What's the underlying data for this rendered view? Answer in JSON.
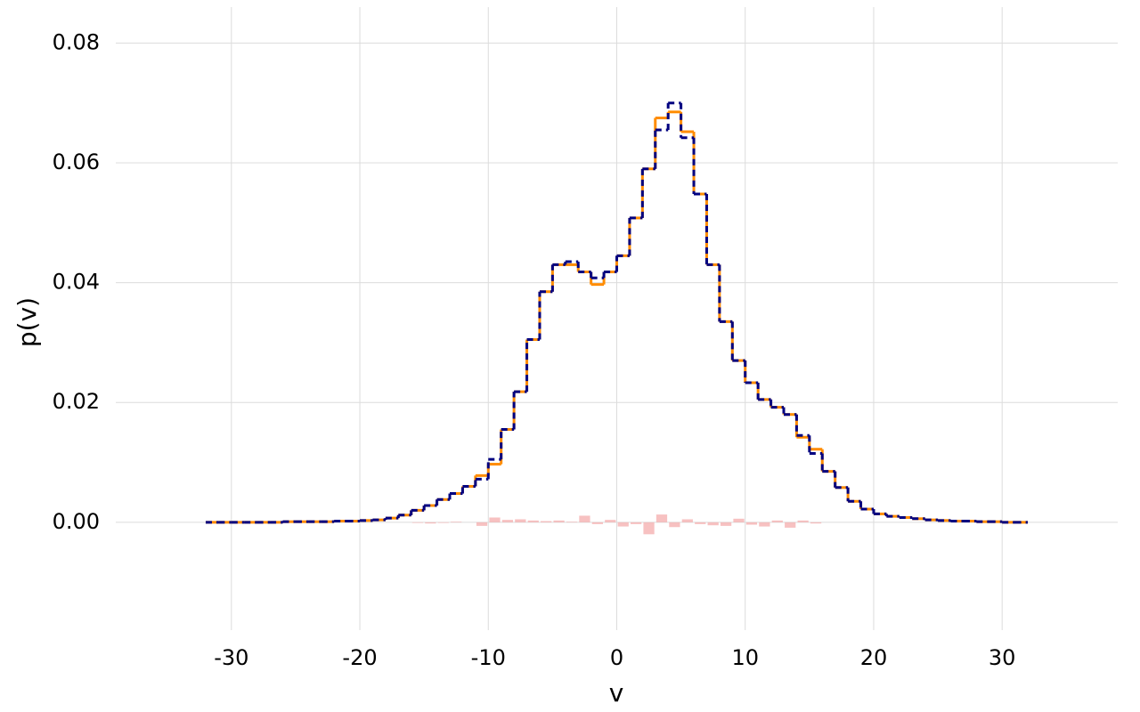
{
  "chart_data": {
    "type": "step-histogram",
    "x_label": "v",
    "y_label": "p(v)",
    "xlim": [
      -39,
      39
    ],
    "ylim": [
      -0.018,
      0.086
    ],
    "xticks": [
      -30,
      -20,
      -10,
      0,
      10,
      20,
      30
    ],
    "yticks": [
      {
        "value": 0,
        "label": "0.00"
      },
      0.02,
      0.04,
      0.06,
      0.08
    ],
    "grid": true,
    "bins": [
      -32,
      -31,
      -30,
      -29,
      -28,
      -27,
      -26,
      -25,
      -24,
      -23,
      -22,
      -21,
      -20,
      -19,
      -18,
      -17,
      -16,
      -15,
      -14,
      -13,
      -12,
      -11,
      -10,
      -9,
      -8,
      -7,
      -6,
      -5,
      -4,
      -3,
      -2,
      -1,
      0,
      1,
      2,
      3,
      4,
      5,
      6,
      7,
      8,
      9,
      10,
      11,
      12,
      13,
      14,
      15,
      16,
      17,
      18,
      19,
      20,
      21,
      22,
      23,
      24,
      25,
      26,
      27,
      28,
      29,
      30,
      31,
      32
    ],
    "series": [
      {
        "color": "#ff8c00",
        "style": "solid",
        "values": [
          0,
          0,
          0,
          0,
          0,
          0,
          0.0001,
          0.0001,
          0.0001,
          0.0001,
          0.0002,
          0.0002,
          0.0003,
          0.0004,
          0.0007,
          0.0012,
          0.002,
          0.0028,
          0.0038,
          0.0048,
          0.006,
          0.0078,
          0.0097,
          0.0155,
          0.0218,
          0.0305,
          0.0385,
          0.043,
          0.043,
          0.0418,
          0.0397,
          0.0418,
          0.0445,
          0.0508,
          0.059,
          0.0675,
          0.0685,
          0.0652,
          0.0548,
          0.043,
          0.0335,
          0.027,
          0.0233,
          0.0205,
          0.0192,
          0.018,
          0.0142,
          0.0122,
          0.0085,
          0.0058,
          0.0035,
          0.0022,
          0.0014,
          0.001,
          0.0008,
          0.0006,
          0.0004,
          0.0003,
          0.0002,
          0.0002,
          0.0001,
          0.0001,
          0,
          0
        ]
      },
      {
        "color": "#000080",
        "style": "dashed",
        "values": [
          0,
          0,
          0,
          0,
          0,
          0,
          0.0001,
          0.0001,
          0.0001,
          0.0001,
          0.0002,
          0.0002,
          0.0003,
          0.0004,
          0.0007,
          0.0012,
          0.002,
          0.0028,
          0.0038,
          0.0048,
          0.006,
          0.0072,
          0.0105,
          0.0155,
          0.0218,
          0.0305,
          0.0385,
          0.043,
          0.0435,
          0.0418,
          0.0408,
          0.0418,
          0.0445,
          0.0508,
          0.059,
          0.0655,
          0.07,
          0.0642,
          0.0548,
          0.043,
          0.0335,
          0.027,
          0.0233,
          0.0205,
          0.0192,
          0.018,
          0.0145,
          0.0115,
          0.0085,
          0.0058,
          0.0035,
          0.0022,
          0.0014,
          0.001,
          0.0008,
          0.0006,
          0.0004,
          0.0003,
          0.0002,
          0.0002,
          0.0001,
          0.0001,
          0,
          0
        ]
      }
    ],
    "residual": {
      "color": "#f4a6a6",
      "values": [
        0,
        0,
        0,
        0,
        0,
        0,
        0,
        0,
        0,
        0,
        0,
        0,
        0,
        0,
        0,
        0,
        -0.0001,
        -0.0002,
        -0.0001,
        0.0001,
        0,
        -0.0006,
        0.0008,
        0.0004,
        0.0005,
        0.0003,
        0.0002,
        0.0003,
        0.0001,
        0.0011,
        -0.0003,
        0.0004,
        -0.0007,
        -0.0003,
        -0.002,
        0.0013,
        -0.0008,
        0.0005,
        -0.0003,
        -0.0005,
        -0.0006,
        0.0006,
        -0.0004,
        -0.0007,
        0.0003,
        -0.0009,
        0.0003,
        -0.0002,
        0,
        0,
        0,
        0,
        0,
        0,
        0,
        0,
        0,
        0,
        0,
        0,
        0,
        0,
        0,
        0
      ]
    }
  }
}
